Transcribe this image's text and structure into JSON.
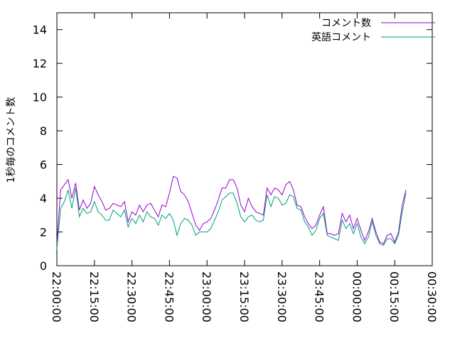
{
  "chart_data": {
    "type": "line",
    "title": "",
    "xlabel": "",
    "ylabel": "1秒毎のコメント数",
    "ylim": [
      0,
      15
    ],
    "yticks": [
      0,
      2,
      4,
      6,
      8,
      10,
      12,
      14
    ],
    "xticks": [
      "22:00:00",
      "22:15:00",
      "22:30:00",
      "22:45:00",
      "23:00:00",
      "23:15:00",
      "23:30:00",
      "23:45:00",
      "00:00:00",
      "00:15:00",
      "00:30:00"
    ],
    "x_range_minutes": [
      0,
      150
    ],
    "legend_position": "top-right",
    "grid": false,
    "series": [
      {
        "name": "コメント数",
        "color": "#9400d3",
        "x": [
          0.0,
          1.5,
          3.0,
          4.5,
          6.0,
          7.5,
          9.0,
          10.5,
          12.0,
          13.5,
          15.0,
          16.5,
          18.0,
          19.5,
          21.0,
          22.5,
          24.0,
          25.5,
          27.0,
          28.5,
          30.0,
          31.5,
          33.0,
          34.5,
          36.0,
          37.5,
          39.0,
          40.5,
          42.0,
          43.5,
          45.0,
          46.5,
          48.0,
          49.5,
          51.0,
          52.5,
          54.0,
          55.5,
          57.0,
          58.5,
          60.0,
          61.5,
          63.0,
          64.5,
          66.0,
          67.5,
          69.0,
          70.5,
          72.0,
          73.5,
          75.0,
          76.5,
          78.0,
          79.5,
          81.0,
          82.5,
          84.0,
          85.5,
          87.0,
          88.5,
          90.0,
          91.5,
          93.0,
          94.5,
          96.0,
          97.5,
          99.0,
          100.5,
          102.0,
          103.5,
          105.0,
          106.5,
          108.0,
          109.5,
          111.0,
          112.5,
          114.0,
          115.5,
          117.0,
          118.5,
          120.0,
          121.5,
          123.0,
          124.5,
          126.0,
          127.5,
          129.0,
          130.5,
          132.0,
          133.5,
          135.0,
          136.5,
          138.0,
          139.5
        ],
        "values": [
          1.3,
          4.5,
          4.8,
          5.1,
          4.0,
          4.9,
          3.3,
          3.9,
          3.4,
          3.7,
          4.7,
          4.2,
          3.8,
          3.3,
          3.4,
          3.7,
          3.6,
          3.5,
          3.8,
          2.6,
          3.2,
          3.0,
          3.6,
          3.2,
          3.6,
          3.7,
          3.3,
          2.9,
          3.6,
          3.5,
          4.3,
          5.3,
          5.2,
          4.4,
          4.2,
          3.8,
          3.1,
          2.4,
          2.1,
          2.5,
          2.6,
          2.8,
          3.3,
          3.9,
          4.6,
          4.6,
          5.1,
          5.1,
          4.6,
          3.6,
          3.2,
          4.0,
          3.5,
          3.2,
          3.1,
          3.0,
          4.6,
          4.2,
          4.6,
          4.5,
          4.2,
          4.8,
          5.0,
          4.5,
          3.6,
          3.5,
          2.9,
          2.5,
          2.2,
          2.4,
          3.0,
          3.5,
          1.9,
          1.9,
          1.8,
          1.9,
          3.1,
          2.6,
          3.0,
          2.2,
          2.8,
          2.1,
          1.5,
          2.0,
          2.8,
          2.0,
          1.4,
          1.3,
          1.8,
          1.9,
          1.4,
          2.0,
          3.6,
          4.5
        ]
      },
      {
        "name": "英語コメント",
        "color": "#009e73",
        "x": [
          0.0,
          1.5,
          3.0,
          4.5,
          6.0,
          7.5,
          9.0,
          10.5,
          12.0,
          13.5,
          15.0,
          16.5,
          18.0,
          19.5,
          21.0,
          22.5,
          24.0,
          25.5,
          27.0,
          28.5,
          30.0,
          31.5,
          33.0,
          34.5,
          36.0,
          37.5,
          39.0,
          40.5,
          42.0,
          43.5,
          45.0,
          46.5,
          48.0,
          49.5,
          51.0,
          52.5,
          54.0,
          55.5,
          57.0,
          58.5,
          60.0,
          61.5,
          63.0,
          64.5,
          66.0,
          67.5,
          69.0,
          70.5,
          72.0,
          73.5,
          75.0,
          76.5,
          78.0,
          79.5,
          81.0,
          82.5,
          84.0,
          85.5,
          87.0,
          88.5,
          90.0,
          91.5,
          93.0,
          94.5,
          96.0,
          97.5,
          99.0,
          100.5,
          102.0,
          103.5,
          105.0,
          106.5,
          108.0,
          109.5,
          111.0,
          112.5,
          114.0,
          115.5,
          117.0,
          118.5,
          120.0,
          121.5,
          123.0,
          124.5,
          126.0,
          127.5,
          129.0,
          130.5,
          132.0,
          133.5,
          135.0,
          136.5,
          138.0,
          139.5
        ],
        "values": [
          1.0,
          3.4,
          3.8,
          4.5,
          3.4,
          4.6,
          2.9,
          3.4,
          3.1,
          3.2,
          3.8,
          3.2,
          3.0,
          2.7,
          2.7,
          3.3,
          3.1,
          2.9,
          3.3,
          2.3,
          2.8,
          2.5,
          3.0,
          2.6,
          3.2,
          2.9,
          2.8,
          2.4,
          3.0,
          2.8,
          3.1,
          2.7,
          1.8,
          2.5,
          2.8,
          2.7,
          2.4,
          1.8,
          2.0,
          2.0,
          2.0,
          2.2,
          2.7,
          3.2,
          3.9,
          4.1,
          4.3,
          4.3,
          3.7,
          2.9,
          2.6,
          2.9,
          3.0,
          2.7,
          2.6,
          2.7,
          4.2,
          3.5,
          4.1,
          4.0,
          3.6,
          3.7,
          4.2,
          4.1,
          3.4,
          3.3,
          2.6,
          2.3,
          1.8,
          2.1,
          2.8,
          3.1,
          1.8,
          1.7,
          1.6,
          1.5,
          2.7,
          2.2,
          2.5,
          1.9,
          2.5,
          1.7,
          1.3,
          1.7,
          2.6,
          1.8,
          1.3,
          1.2,
          1.6,
          1.6,
          1.3,
          1.8,
          3.2,
          4.3
        ]
      }
    ]
  }
}
